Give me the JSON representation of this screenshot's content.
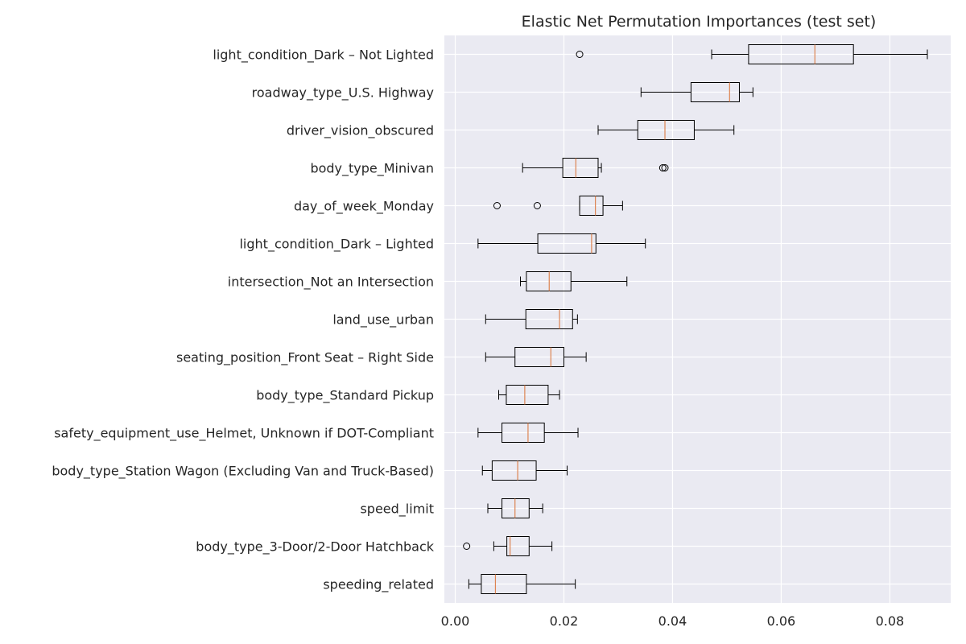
{
  "chart_data": {
    "type": "boxplot",
    "orientation": "horizontal",
    "title": "Elastic Net Permutation Importances (test set)",
    "xlabel": "",
    "ylabel": "",
    "xlim": [
      -0.002,
      0.0912
    ],
    "xticks": [
      0.0,
      0.02,
      0.04,
      0.06,
      0.08
    ],
    "xtick_labels": [
      "0.00",
      "0.02",
      "0.04",
      "0.06",
      "0.08"
    ],
    "grid": true,
    "background": "#eaeaf2",
    "grid_color": "#ffffff",
    "box_edge_color": "#000000",
    "median_color": "#dd8452",
    "features": [
      {
        "label": "light_condition_Dark – Not Lighted",
        "whisker_low": 0.0472,
        "q1": 0.054,
        "median": 0.0662,
        "q3": 0.0733,
        "whisker_high": 0.0869,
        "outliers": [
          0.0229
        ]
      },
      {
        "label": "roadway_type_U.S. Highway",
        "whisker_low": 0.0342,
        "q1": 0.0434,
        "median": 0.0505,
        "q3": 0.0523,
        "whisker_high": 0.0548,
        "outliers": []
      },
      {
        "label": "driver_vision_obscured",
        "whisker_low": 0.0263,
        "q1": 0.0336,
        "median": 0.0386,
        "q3": 0.044,
        "whisker_high": 0.0513,
        "outliers": []
      },
      {
        "label": "body_type_Minivan",
        "whisker_low": 0.0124,
        "q1": 0.0198,
        "median": 0.0222,
        "q3": 0.0263,
        "whisker_high": 0.0269,
        "outliers": [
          0.0382,
          0.0386
        ]
      },
      {
        "label": "day_of_week_Monday",
        "whisker_low": 0.0229,
        "q1": 0.0229,
        "median": 0.0258,
        "q3": 0.0272,
        "whisker_high": 0.0308,
        "outliers": [
          0.0077,
          0.0151
        ]
      },
      {
        "label": "light_condition_Dark – Lighted",
        "whisker_low": 0.0042,
        "q1": 0.0152,
        "median": 0.0251,
        "q3": 0.0259,
        "whisker_high": 0.035,
        "outliers": []
      },
      {
        "label": "intersection_Not an Intersection",
        "whisker_low": 0.012,
        "q1": 0.0131,
        "median": 0.0173,
        "q3": 0.0213,
        "whisker_high": 0.0316,
        "outliers": []
      },
      {
        "label": "land_use_urban",
        "whisker_low": 0.0056,
        "q1": 0.013,
        "median": 0.0192,
        "q3": 0.0216,
        "whisker_high": 0.0225,
        "outliers": []
      },
      {
        "label": "seating_position_Front Seat – Right Side",
        "whisker_low": 0.0056,
        "q1": 0.011,
        "median": 0.0176,
        "q3": 0.02,
        "whisker_high": 0.0241,
        "outliers": []
      },
      {
        "label": "body_type_Standard Pickup",
        "whisker_low": 0.008,
        "q1": 0.0094,
        "median": 0.0128,
        "q3": 0.0171,
        "whisker_high": 0.0192,
        "outliers": []
      },
      {
        "label": "safety_equipment_use_Helmet, Unknown if DOT-Compliant",
        "whisker_low": 0.0042,
        "q1": 0.0086,
        "median": 0.0134,
        "q3": 0.0164,
        "whisker_high": 0.0226,
        "outliers": []
      },
      {
        "label": "body_type_Station Wagon (Excluding Van and Truck-Based)",
        "whisker_low": 0.005,
        "q1": 0.0068,
        "median": 0.0115,
        "q3": 0.0149,
        "whisker_high": 0.0206,
        "outliers": []
      },
      {
        "label": "speed_limit",
        "whisker_low": 0.006,
        "q1": 0.0086,
        "median": 0.011,
        "q3": 0.0136,
        "whisker_high": 0.0161,
        "outliers": []
      },
      {
        "label": "body_type_3-Door/2-Door Hatchback",
        "whisker_low": 0.0071,
        "q1": 0.0095,
        "median": 0.0101,
        "q3": 0.0136,
        "whisker_high": 0.0178,
        "outliers": [
          0.0021
        ]
      },
      {
        "label": "speeding_related",
        "whisker_low": 0.0025,
        "q1": 0.0048,
        "median": 0.0074,
        "q3": 0.0131,
        "whisker_high": 0.0221,
        "outliers": []
      }
    ]
  }
}
